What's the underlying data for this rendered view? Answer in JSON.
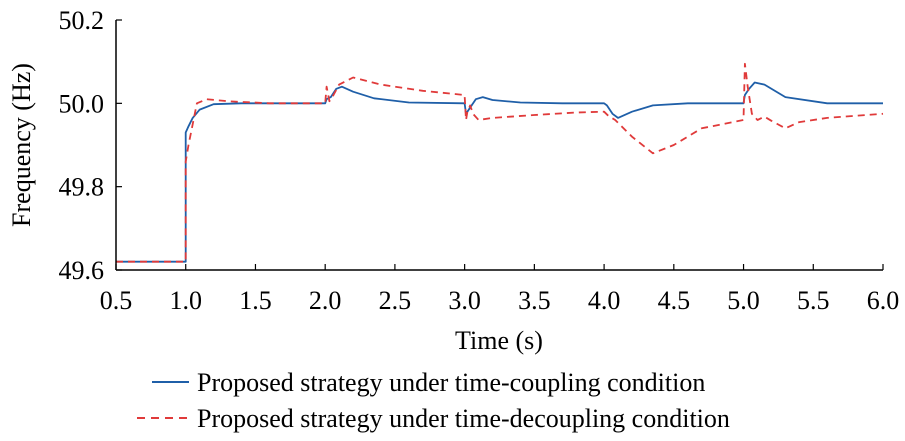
{
  "chart_data": {
    "type": "line",
    "title": "",
    "xlabel": "Time (s)",
    "ylabel": "Frequency (Hz)",
    "xlim": [
      0.5,
      6.0
    ],
    "ylim": [
      49.6,
      50.2
    ],
    "xticks": [
      "0.5",
      "1.0",
      "1.5",
      "2.0",
      "2.5",
      "3.0",
      "3.5",
      "4.0",
      "4.5",
      "5.0",
      "5.5",
      "6.0"
    ],
    "yticks": [
      "49.6",
      "49.8",
      "50.0",
      "50.2"
    ],
    "grid": false,
    "legend_position": "bottom",
    "series": [
      {
        "name": "Proposed strategy under time-coupling condition",
        "color": "#1f5fa8",
        "style": "solid",
        "x": [
          0.5,
          1.0,
          1.0,
          1.02,
          1.05,
          1.1,
          1.2,
          1.4,
          1.7,
          2.0,
          2.01,
          2.04,
          2.08,
          2.12,
          2.2,
          2.35,
          2.6,
          3.0,
          3.01,
          3.04,
          3.08,
          3.13,
          3.2,
          3.4,
          3.7,
          4.0,
          4.02,
          4.06,
          4.1,
          4.2,
          4.35,
          4.6,
          5.0,
          5.01,
          5.04,
          5.08,
          5.15,
          5.3,
          5.6,
          6.0
        ],
        "y": [
          49.62,
          49.62,
          49.93,
          49.945,
          49.965,
          49.985,
          49.998,
          50.0,
          50.0,
          50.0,
          50.01,
          50.015,
          50.035,
          50.04,
          50.028,
          50.012,
          50.002,
          50.0,
          49.975,
          49.99,
          50.01,
          50.015,
          50.008,
          50.002,
          50.0,
          50.0,
          49.995,
          49.975,
          49.965,
          49.98,
          49.995,
          50.0,
          50.0,
          50.02,
          50.035,
          50.05,
          50.045,
          50.015,
          50.0,
          50.0
        ]
      },
      {
        "name": "Proposed strategy under time-decoupling condition",
        "color": "#e03a3a",
        "style": "dashed",
        "x": [
          0.5,
          1.0,
          1.0,
          1.02,
          1.05,
          1.08,
          1.15,
          1.3,
          1.6,
          2.0,
          2.01,
          2.03,
          2.06,
          2.1,
          2.2,
          2.4,
          2.7,
          3.0,
          3.01,
          3.02,
          3.04,
          3.06,
          3.1,
          3.2,
          3.5,
          3.8,
          4.0,
          4.03,
          4.08,
          4.2,
          4.35,
          4.5,
          4.7,
          5.0,
          5.01,
          5.03,
          5.06,
          5.1,
          5.15,
          5.2,
          5.3,
          5.4,
          5.6,
          6.0
        ],
        "y": [
          49.62,
          49.62,
          49.86,
          49.9,
          49.95,
          50.0,
          50.01,
          50.005,
          50.0,
          50.0,
          50.04,
          50.005,
          50.02,
          50.045,
          50.062,
          50.045,
          50.03,
          50.02,
          49.96,
          49.98,
          49.995,
          49.975,
          49.96,
          49.965,
          49.972,
          49.978,
          49.98,
          49.97,
          49.96,
          49.92,
          49.88,
          49.9,
          49.94,
          49.96,
          50.095,
          50.04,
          49.975,
          49.96,
          49.968,
          49.958,
          49.94,
          49.955,
          49.965,
          49.975
        ]
      }
    ]
  }
}
